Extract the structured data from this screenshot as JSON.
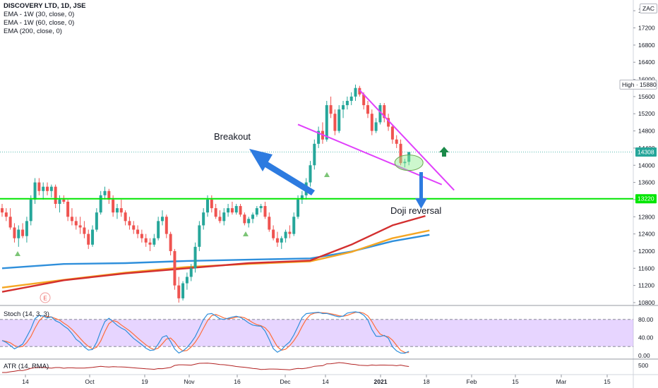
{
  "chart_data": {
    "type": "candlestick",
    "title": "DISCOVERY LTD, 1D, JSE",
    "currency_label": "ZAC",
    "indicators": [
      "EMA - 1W (30, close, 0)",
      "EMA - 1W (60, close, 0)",
      "EMA (200, close, 0)"
    ],
    "y_axis_ticks": [
      10800,
      11200,
      11600,
      12000,
      12400,
      12800,
      13200,
      13600,
      14000,
      14400,
      14800,
      15200,
      15600,
      16000,
      16400,
      16800,
      17200,
      17600
    ],
    "ylim": [
      10750,
      17850
    ],
    "x_axis_labels": [
      "14",
      "Oct",
      "19",
      "Nov",
      "16",
      "Dec",
      "14",
      "2021",
      "18",
      "Feb",
      "15",
      "Mar",
      "15"
    ],
    "price_badges": [
      {
        "label": "High",
        "value": "15880",
        "color": "#787b86"
      },
      {
        "value": "14308",
        "color": "#26a69a"
      },
      {
        "value": "13220",
        "color": "#00e600"
      }
    ],
    "support_level": 13220,
    "colors": {
      "up": "#26a69a",
      "down": "#ef5350",
      "support": "#00e600",
      "trend": "#e040fb",
      "ema30": "#d32f2f",
      "ema60": "#f5a623",
      "ema200": "#2f8fdb",
      "arrow_blue": "#2d7be0"
    },
    "annotations": [
      "Breakout",
      "Doji reversal"
    ],
    "marker_labels": [
      "E"
    ],
    "candles": [
      [
        13000,
        13100,
        12800,
        12900
      ],
      [
        12900,
        13000,
        12700,
        12800
      ],
      [
        12800,
        13000,
        12500,
        12550
      ],
      [
        12550,
        12650,
        12200,
        12300
      ],
      [
        12300,
        12600,
        12100,
        12500
      ],
      [
        12500,
        12650,
        12300,
        12350
      ],
      [
        12350,
        12800,
        12200,
        12700
      ],
      [
        12700,
        13300,
        12600,
        13200
      ],
      [
        13200,
        13700,
        13100,
        13600
      ],
      [
        13600,
        13700,
        13300,
        13400
      ],
      [
        13400,
        13600,
        13200,
        13500
      ],
      [
        13500,
        13600,
        13300,
        13400
      ],
      [
        13400,
        13550,
        13250,
        13500
      ],
      [
        13500,
        13550,
        13000,
        13100
      ],
      [
        13100,
        13300,
        12900,
        13200
      ],
      [
        13200,
        13300,
        13100,
        13150
      ],
      [
        13150,
        13200,
        12700,
        12800
      ],
      [
        12800,
        13000,
        12600,
        12700
      ],
      [
        12700,
        12800,
        12500,
        12600
      ],
      [
        12600,
        12800,
        12400,
        12550
      ],
      [
        12550,
        12700,
        12300,
        12400
      ],
      [
        12400,
        12500,
        12050,
        12150
      ],
      [
        12150,
        12600,
        12100,
        12500
      ],
      [
        12500,
        13000,
        12450,
        12900
      ],
      [
        12900,
        13400,
        12850,
        13300
      ],
      [
        13300,
        13500,
        13200,
        13400
      ],
      [
        13400,
        13450,
        13100,
        13200
      ],
      [
        13200,
        13300,
        12800,
        12900
      ],
      [
        12900,
        13100,
        12750,
        13000
      ],
      [
        13000,
        13200,
        12800,
        12900
      ],
      [
        12900,
        12950,
        12600,
        12700
      ],
      [
        12700,
        12800,
        12500,
        12600
      ],
      [
        12600,
        12700,
        12400,
        12500
      ],
      [
        12500,
        12600,
        12300,
        12400
      ],
      [
        12400,
        12500,
        12200,
        12300
      ],
      [
        12300,
        12400,
        12100,
        12200
      ],
      [
        12200,
        12300,
        12000,
        12150
      ],
      [
        12150,
        12400,
        12100,
        12300
      ],
      [
        12300,
        12800,
        12250,
        12700
      ],
      [
        12700,
        12950,
        12600,
        12800
      ],
      [
        12800,
        12850,
        12300,
        12400
      ],
      [
        12400,
        12450,
        11900,
        12000
      ],
      [
        12000,
        12050,
        11100,
        11200
      ],
      [
        11200,
        11400,
        10800,
        10900
      ],
      [
        10900,
        11300,
        10850,
        11250
      ],
      [
        11250,
        11500,
        11100,
        11400
      ],
      [
        11400,
        11700,
        11300,
        11600
      ],
      [
        11600,
        12200,
        11500,
        12100
      ],
      [
        12100,
        12700,
        12000,
        12600
      ],
      [
        12600,
        13000,
        12500,
        12900
      ],
      [
        12900,
        13300,
        12800,
        13200
      ],
      [
        13200,
        13300,
        12900,
        13000
      ],
      [
        13000,
        13100,
        12750,
        12800
      ],
      [
        12800,
        12950,
        12650,
        12700
      ],
      [
        12700,
        13000,
        12600,
        12900
      ],
      [
        12900,
        13100,
        12800,
        13000
      ],
      [
        13000,
        13150,
        12850,
        12900
      ],
      [
        12900,
        13100,
        12850,
        13050
      ],
      [
        13050,
        13100,
        12800,
        12850
      ],
      [
        12850,
        12900,
        12600,
        12650
      ],
      [
        12650,
        12800,
        12550,
        12750
      ],
      [
        12750,
        12900,
        12650,
        12850
      ],
      [
        12850,
        13050,
        12800,
        13000
      ],
      [
        13000,
        13100,
        12900,
        13050
      ],
      [
        13050,
        13150,
        12750,
        12800
      ],
      [
        12800,
        12900,
        12450,
        12500
      ],
      [
        12500,
        12600,
        12250,
        12300
      ],
      [
        12300,
        12450,
        12100,
        12200
      ],
      [
        12200,
        12350,
        12050,
        12300
      ],
      [
        12300,
        12500,
        12200,
        12450
      ],
      [
        12450,
        12600,
        12300,
        12400
      ],
      [
        12400,
        12900,
        12350,
        12800
      ],
      [
        12800,
        13300,
        12750,
        13200
      ],
      [
        13200,
        13400,
        13100,
        13300
      ],
      [
        13300,
        13700,
        13200,
        13600
      ],
      [
        13600,
        14100,
        13500,
        14000
      ],
      [
        14000,
        14600,
        13900,
        14500
      ],
      [
        14500,
        14900,
        14400,
        14800
      ],
      [
        14800,
        15000,
        14500,
        14600
      ],
      [
        14600,
        15500,
        14550,
        15400
      ],
      [
        15400,
        15600,
        15100,
        15200
      ],
      [
        15200,
        15300,
        14700,
        14800
      ],
      [
        14800,
        15400,
        14750,
        15300
      ],
      [
        15300,
        15500,
        15100,
        15400
      ],
      [
        15400,
        15600,
        15300,
        15500
      ],
      [
        15500,
        15700,
        15400,
        15600
      ],
      [
        15600,
        15880,
        15500,
        15800
      ],
      [
        15800,
        15850,
        15600,
        15650
      ],
      [
        15650,
        15700,
        15300,
        15400
      ],
      [
        15400,
        15500,
        15100,
        15200
      ],
      [
        15200,
        15300,
        14700,
        14800
      ],
      [
        14800,
        15100,
        14750,
        15000
      ],
      [
        15000,
        15450,
        14950,
        15400
      ],
      [
        15400,
        15450,
        15000,
        15100
      ],
      [
        15100,
        15200,
        14800,
        14900
      ],
      [
        14900,
        14950,
        14500,
        14600
      ],
      [
        14600,
        14700,
        14400,
        14500
      ],
      [
        14500,
        14600,
        14000,
        14050
      ],
      [
        14050,
        14150,
        13950,
        14080
      ],
      [
        14080,
        14300,
        14000,
        14308
      ]
    ],
    "ema30": [
      [
        0,
        11050
      ],
      [
        15,
        11320
      ],
      [
        30,
        11480
      ],
      [
        45,
        11600
      ],
      [
        60,
        11720
      ],
      [
        75,
        11780
      ],
      [
        85,
        12150
      ],
      [
        95,
        12600
      ],
      [
        103,
        12820
      ]
    ],
    "ema60": [
      [
        0,
        11150
      ],
      [
        15,
        11330
      ],
      [
        30,
        11500
      ],
      [
        45,
        11630
      ],
      [
        60,
        11700
      ],
      [
        75,
        11760
      ],
      [
        85,
        11980
      ],
      [
        95,
        12300
      ],
      [
        104,
        12480
      ]
    ],
    "ema200": [
      [
        0,
        11600
      ],
      [
        15,
        11700
      ],
      [
        30,
        11720
      ],
      [
        45,
        11770
      ],
      [
        60,
        11800
      ],
      [
        75,
        11830
      ],
      [
        85,
        11990
      ],
      [
        95,
        12230
      ],
      [
        104,
        12380
      ]
    ],
    "trendlines": [
      {
        "from": [
          72,
          14950
        ],
        "to": [
          107,
          13550
        ]
      },
      {
        "from": [
          87,
          15750
        ],
        "to": [
          110,
          13420
        ]
      }
    ],
    "stoch_pane": {
      "label": "Stoch (14, 3, 3)",
      "ticks": [
        "80.00",
        "40.00",
        "0.00"
      ],
      "upper": 80,
      "lower": 20,
      "k_color": "#2f8fdb",
      "d_color": "#ff6d3a"
    },
    "atr_pane": {
      "label": "ATR (14, RMA)",
      "ticks": [
        "500"
      ],
      "color": "#b22222"
    }
  }
}
